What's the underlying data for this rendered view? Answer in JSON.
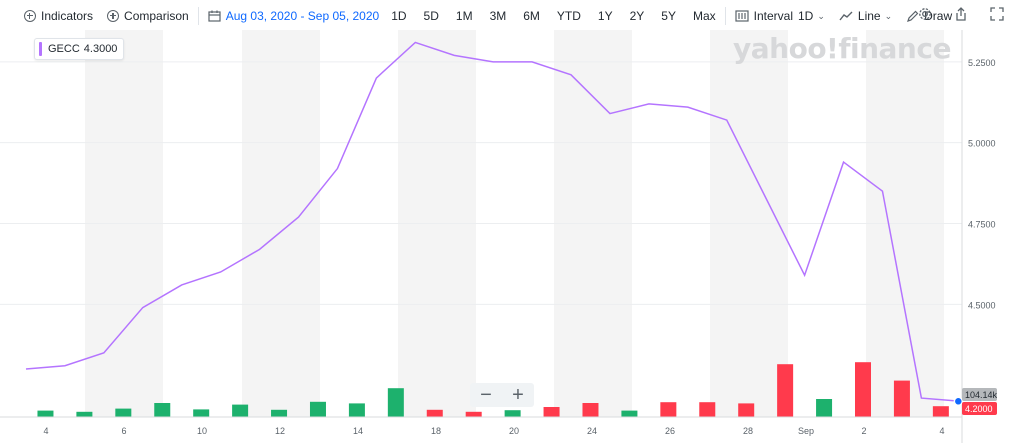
{
  "toolbar": {
    "indicators": "Indicators",
    "comparison": "Comparison",
    "date_range": "Aug 03, 2020 - Sep 05, 2020",
    "ranges": [
      "1D",
      "5D",
      "1M",
      "3M",
      "6M",
      "YTD",
      "1Y",
      "2Y",
      "5Y",
      "Max"
    ],
    "interval_label": "Interval",
    "interval_value": "1D",
    "chart_type": "Line",
    "draw": "Draw"
  },
  "legend": {
    "symbol": "GECC",
    "value": "4.3000"
  },
  "watermark": "yahoo!finance",
  "zoom": {
    "minus": "−",
    "plus": "+"
  },
  "colors": {
    "price_line": "#b474ff",
    "volume_up": "#1db16d",
    "volume_down": "#ff3a4c",
    "band": "#f4f4f4"
  },
  "chart_data": {
    "type": "line",
    "symbol": "GECC",
    "yticks": [
      "5.2500",
      "5.0000",
      "4.7500",
      "4.5000"
    ],
    "xticks": [
      "4",
      "6",
      "10",
      "12",
      "14",
      "18",
      "20",
      "24",
      "26",
      "28",
      "Sep",
      "2",
      "4"
    ],
    "volume_label": "104.14k",
    "last_price_label": "4.2000",
    "series": [
      {
        "values": [
          4.3,
          4.31,
          4.35,
          4.49,
          4.56,
          4.6,
          4.67,
          4.77,
          4.92,
          5.2,
          5.31,
          5.27,
          5.25,
          5.25,
          5.21,
          5.09,
          5.12,
          5.11,
          5.07,
          4.83,
          4.59,
          4.94,
          4.85,
          4.21,
          4.2
        ]
      }
    ],
    "volume_direction": [
      "up",
      "up",
      "up",
      "up",
      "up",
      "up",
      "up",
      "up",
      "up",
      "up",
      "down",
      "down",
      "up",
      "down",
      "down",
      "up",
      "down",
      "down",
      "down",
      "down",
      "up",
      "down",
      "down",
      "down"
    ],
    "volume_relative": [
      0.16,
      0.13,
      0.21,
      0.35,
      0.19,
      0.31,
      0.18,
      0.38,
      0.34,
      0.72,
      0.18,
      0.13,
      0.17,
      0.25,
      0.35,
      0.16,
      0.37,
      0.37,
      0.34,
      1.32,
      0.45,
      1.37,
      0.91,
      0.27
    ],
    "ylim": [
      4.17,
      5.33
    ],
    "grid": true
  }
}
